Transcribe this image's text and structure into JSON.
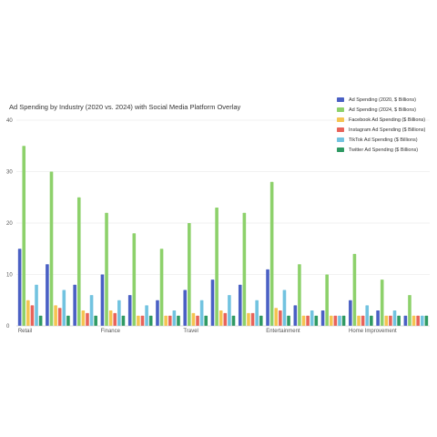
{
  "chart_data": {
    "type": "bar",
    "title": "Ad Spending by Industry (2020 vs. 2024) with Social Media Platform Overlay",
    "xlabel": "",
    "ylabel": "",
    "ylim": [
      0,
      40
    ],
    "yticks": [
      0,
      10,
      20,
      30,
      40
    ],
    "grid": true,
    "legend_position": "top-right",
    "categories": [
      "Retail",
      "",
      "",
      "Finance",
      "",
      "",
      "Travel",
      "",
      "",
      "Entertainment",
      "",
      "",
      "Home Improvement",
      "",
      ""
    ],
    "series": [
      {
        "name": "Ad Spending (2020, $ Billions)",
        "color": "#4a60c4",
        "values": [
          15,
          12,
          8,
          10,
          6,
          5,
          7,
          9,
          8,
          11,
          4,
          3,
          5,
          3,
          2
        ]
      },
      {
        "name": "Ad Spending (2024, $ Billions)",
        "color": "#8dd16b",
        "values": [
          35,
          30,
          25,
          22,
          18,
          15,
          20,
          23,
          22,
          28,
          12,
          10,
          14,
          9,
          6
        ]
      },
      {
        "name": "Facebook Ad Spending ($ Billions)",
        "color": "#f5c451",
        "values": [
          5,
          4,
          3,
          3,
          2,
          2,
          2.5,
          3,
          2.5,
          3.5,
          2,
          2,
          2,
          2,
          2
        ]
      },
      {
        "name": "Instagram Ad Spending ($ Billions)",
        "color": "#e8635a",
        "values": [
          4,
          3.5,
          2.5,
          2.5,
          2,
          2,
          2,
          2.5,
          2.5,
          3,
          2,
          2,
          2,
          2,
          2
        ]
      },
      {
        "name": "TikTok Ad Spending ($ Billions)",
        "color": "#72c3e0",
        "values": [
          8,
          7,
          6,
          5,
          4,
          3,
          5,
          6,
          5,
          7,
          3,
          2,
          4,
          3,
          2
        ]
      },
      {
        "name": "Twitter Ad Spending ($ Billions)",
        "color": "#2f9a63",
        "values": [
          2,
          2,
          2,
          2,
          2,
          2,
          2,
          2,
          2,
          2,
          2,
          2,
          2,
          2,
          2
        ]
      }
    ]
  }
}
